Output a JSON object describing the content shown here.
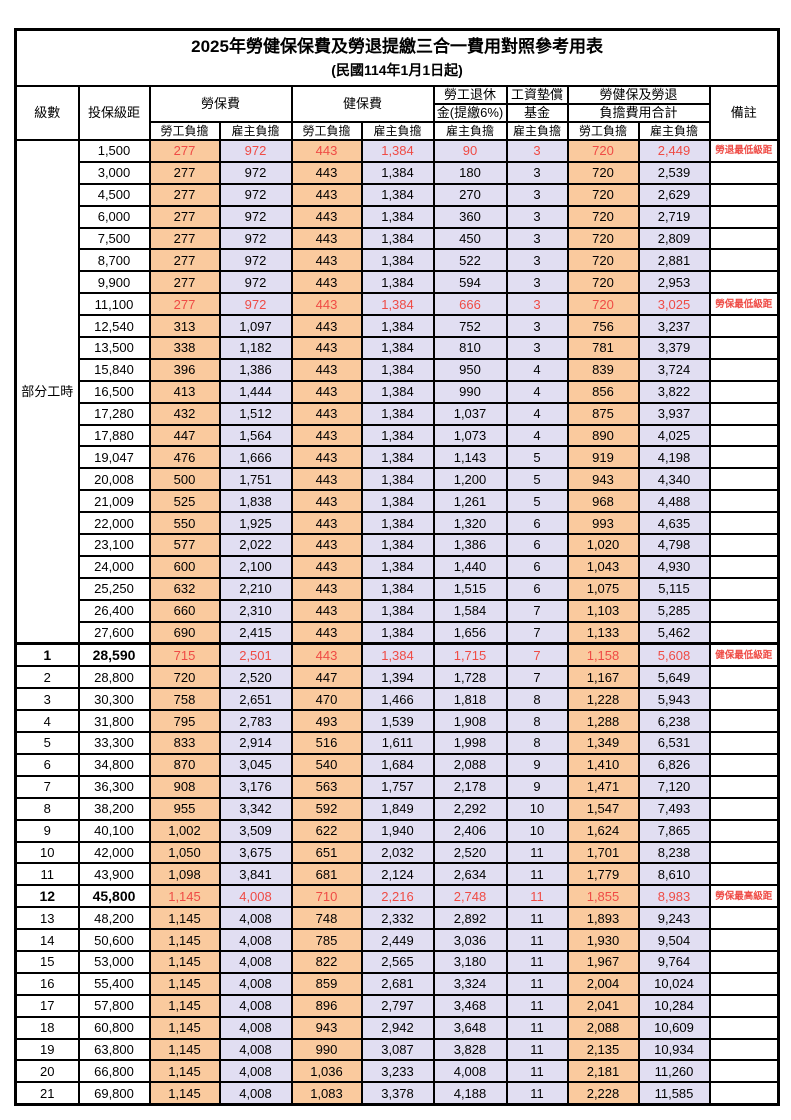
{
  "title": "2025年勞健保保費及勞退提繳三合一費用對照參考用表",
  "subtitle": "(民國114年1月1日起)",
  "header": {
    "level": "級數",
    "bracket": "投保級距",
    "labor_ins": "勞保費",
    "health_ins": "健保費",
    "pension_line1": "勞工退休",
    "pension_line2": "金(提繳6%)",
    "wage_fund_line1": "工資墊償",
    "wage_fund_line2": "基金",
    "total_line1": "勞健保及勞退",
    "total_line2": "負擔費用合計",
    "remark": "備註",
    "employee": "勞工負擔",
    "employer": "雇主負擔"
  },
  "part_time_label": "部分工時",
  "part_time_span": 23,
  "colors": {
    "employee_bg": "#FACA9E",
    "employer_bg": "#E1DEF2",
    "highlight_red": "#EF4B45",
    "border": "#000000"
  },
  "rows": [
    {
      "level": "",
      "bracket": "1,500",
      "li_emp": "277",
      "li_er": "972",
      "hi_emp": "443",
      "hi_er": "1,384",
      "pension": "90",
      "fund": "3",
      "tot_emp": "720",
      "tot_er": "2,449",
      "remark": "勞退最低級距",
      "highlight": true,
      "bold": false
    },
    {
      "level": "",
      "bracket": "3,000",
      "li_emp": "277",
      "li_er": "972",
      "hi_emp": "443",
      "hi_er": "1,384",
      "pension": "180",
      "fund": "3",
      "tot_emp": "720",
      "tot_er": "2,539",
      "remark": "",
      "highlight": false,
      "bold": false
    },
    {
      "level": "",
      "bracket": "4,500",
      "li_emp": "277",
      "li_er": "972",
      "hi_emp": "443",
      "hi_er": "1,384",
      "pension": "270",
      "fund": "3",
      "tot_emp": "720",
      "tot_er": "2,629",
      "remark": "",
      "highlight": false,
      "bold": false
    },
    {
      "level": "",
      "bracket": "6,000",
      "li_emp": "277",
      "li_er": "972",
      "hi_emp": "443",
      "hi_er": "1,384",
      "pension": "360",
      "fund": "3",
      "tot_emp": "720",
      "tot_er": "2,719",
      "remark": "",
      "highlight": false,
      "bold": false
    },
    {
      "level": "",
      "bracket": "7,500",
      "li_emp": "277",
      "li_er": "972",
      "hi_emp": "443",
      "hi_er": "1,384",
      "pension": "450",
      "fund": "3",
      "tot_emp": "720",
      "tot_er": "2,809",
      "remark": "",
      "highlight": false,
      "bold": false
    },
    {
      "level": "",
      "bracket": "8,700",
      "li_emp": "277",
      "li_er": "972",
      "hi_emp": "443",
      "hi_er": "1,384",
      "pension": "522",
      "fund": "3",
      "tot_emp": "720",
      "tot_er": "2,881",
      "remark": "",
      "highlight": false,
      "bold": false
    },
    {
      "level": "",
      "bracket": "9,900",
      "li_emp": "277",
      "li_er": "972",
      "hi_emp": "443",
      "hi_er": "1,384",
      "pension": "594",
      "fund": "3",
      "tot_emp": "720",
      "tot_er": "2,953",
      "remark": "",
      "highlight": false,
      "bold": false
    },
    {
      "level": "",
      "bracket": "11,100",
      "li_emp": "277",
      "li_er": "972",
      "hi_emp": "443",
      "hi_er": "1,384",
      "pension": "666",
      "fund": "3",
      "tot_emp": "720",
      "tot_er": "3,025",
      "remark": "勞保最低級距",
      "highlight": true,
      "bold": false
    },
    {
      "level": "",
      "bracket": "12,540",
      "li_emp": "313",
      "li_er": "1,097",
      "hi_emp": "443",
      "hi_er": "1,384",
      "pension": "752",
      "fund": "3",
      "tot_emp": "756",
      "tot_er": "3,237",
      "remark": "",
      "highlight": false,
      "bold": false
    },
    {
      "level": "",
      "bracket": "13,500",
      "li_emp": "338",
      "li_er": "1,182",
      "hi_emp": "443",
      "hi_er": "1,384",
      "pension": "810",
      "fund": "3",
      "tot_emp": "781",
      "tot_er": "3,379",
      "remark": "",
      "highlight": false,
      "bold": false
    },
    {
      "level": "",
      "bracket": "15,840",
      "li_emp": "396",
      "li_er": "1,386",
      "hi_emp": "443",
      "hi_er": "1,384",
      "pension": "950",
      "fund": "4",
      "tot_emp": "839",
      "tot_er": "3,724",
      "remark": "",
      "highlight": false,
      "bold": false
    },
    {
      "level": "",
      "bracket": "16,500",
      "li_emp": "413",
      "li_er": "1,444",
      "hi_emp": "443",
      "hi_er": "1,384",
      "pension": "990",
      "fund": "4",
      "tot_emp": "856",
      "tot_er": "3,822",
      "remark": "",
      "highlight": false,
      "bold": false
    },
    {
      "level": "",
      "bracket": "17,280",
      "li_emp": "432",
      "li_er": "1,512",
      "hi_emp": "443",
      "hi_er": "1,384",
      "pension": "1,037",
      "fund": "4",
      "tot_emp": "875",
      "tot_er": "3,937",
      "remark": "",
      "highlight": false,
      "bold": false
    },
    {
      "level": "",
      "bracket": "17,880",
      "li_emp": "447",
      "li_er": "1,564",
      "hi_emp": "443",
      "hi_er": "1,384",
      "pension": "1,073",
      "fund": "4",
      "tot_emp": "890",
      "tot_er": "4,025",
      "remark": "",
      "highlight": false,
      "bold": false
    },
    {
      "level": "",
      "bracket": "19,047",
      "li_emp": "476",
      "li_er": "1,666",
      "hi_emp": "443",
      "hi_er": "1,384",
      "pension": "1,143",
      "fund": "5",
      "tot_emp": "919",
      "tot_er": "4,198",
      "remark": "",
      "highlight": false,
      "bold": false
    },
    {
      "level": "",
      "bracket": "20,008",
      "li_emp": "500",
      "li_er": "1,751",
      "hi_emp": "443",
      "hi_er": "1,384",
      "pension": "1,200",
      "fund": "5",
      "tot_emp": "943",
      "tot_er": "4,340",
      "remark": "",
      "highlight": false,
      "bold": false
    },
    {
      "level": "",
      "bracket": "21,009",
      "li_emp": "525",
      "li_er": "1,838",
      "hi_emp": "443",
      "hi_er": "1,384",
      "pension": "1,261",
      "fund": "5",
      "tot_emp": "968",
      "tot_er": "4,488",
      "remark": "",
      "highlight": false,
      "bold": false
    },
    {
      "level": "",
      "bracket": "22,000",
      "li_emp": "550",
      "li_er": "1,925",
      "hi_emp": "443",
      "hi_er": "1,384",
      "pension": "1,320",
      "fund": "6",
      "tot_emp": "993",
      "tot_er": "4,635",
      "remark": "",
      "highlight": false,
      "bold": false
    },
    {
      "level": "",
      "bracket": "23,100",
      "li_emp": "577",
      "li_er": "2,022",
      "hi_emp": "443",
      "hi_er": "1,384",
      "pension": "1,386",
      "fund": "6",
      "tot_emp": "1,020",
      "tot_er": "4,798",
      "remark": "",
      "highlight": false,
      "bold": false
    },
    {
      "level": "",
      "bracket": "24,000",
      "li_emp": "600",
      "li_er": "2,100",
      "hi_emp": "443",
      "hi_er": "1,384",
      "pension": "1,440",
      "fund": "6",
      "tot_emp": "1,043",
      "tot_er": "4,930",
      "remark": "",
      "highlight": false,
      "bold": false
    },
    {
      "level": "",
      "bracket": "25,250",
      "li_emp": "632",
      "li_er": "2,210",
      "hi_emp": "443",
      "hi_er": "1,384",
      "pension": "1,515",
      "fund": "6",
      "tot_emp": "1,075",
      "tot_er": "5,115",
      "remark": "",
      "highlight": false,
      "bold": false
    },
    {
      "level": "",
      "bracket": "26,400",
      "li_emp": "660",
      "li_er": "2,310",
      "hi_emp": "443",
      "hi_er": "1,384",
      "pension": "1,584",
      "fund": "7",
      "tot_emp": "1,103",
      "tot_er": "5,285",
      "remark": "",
      "highlight": false,
      "bold": false
    },
    {
      "level": "",
      "bracket": "27,600",
      "li_emp": "690",
      "li_er": "2,415",
      "hi_emp": "443",
      "hi_er": "1,384",
      "pension": "1,656",
      "fund": "7",
      "tot_emp": "1,133",
      "tot_er": "5,462",
      "remark": "",
      "highlight": false,
      "bold": false
    },
    {
      "level": "1",
      "bracket": "28,590",
      "li_emp": "715",
      "li_er": "2,501",
      "hi_emp": "443",
      "hi_er": "1,384",
      "pension": "1,715",
      "fund": "7",
      "tot_emp": "1,158",
      "tot_er": "5,608",
      "remark": "健保最低級距",
      "highlight": true,
      "bold": true
    },
    {
      "level": "2",
      "bracket": "28,800",
      "li_emp": "720",
      "li_er": "2,520",
      "hi_emp": "447",
      "hi_er": "1,394",
      "pension": "1,728",
      "fund": "7",
      "tot_emp": "1,167",
      "tot_er": "5,649",
      "remark": "",
      "highlight": false,
      "bold": false
    },
    {
      "level": "3",
      "bracket": "30,300",
      "li_emp": "758",
      "li_er": "2,651",
      "hi_emp": "470",
      "hi_er": "1,466",
      "pension": "1,818",
      "fund": "8",
      "tot_emp": "1,228",
      "tot_er": "5,943",
      "remark": "",
      "highlight": false,
      "bold": false
    },
    {
      "level": "4",
      "bracket": "31,800",
      "li_emp": "795",
      "li_er": "2,783",
      "hi_emp": "493",
      "hi_er": "1,539",
      "pension": "1,908",
      "fund": "8",
      "tot_emp": "1,288",
      "tot_er": "6,238",
      "remark": "",
      "highlight": false,
      "bold": false
    },
    {
      "level": "5",
      "bracket": "33,300",
      "li_emp": "833",
      "li_er": "2,914",
      "hi_emp": "516",
      "hi_er": "1,611",
      "pension": "1,998",
      "fund": "8",
      "tot_emp": "1,349",
      "tot_er": "6,531",
      "remark": "",
      "highlight": false,
      "bold": false
    },
    {
      "level": "6",
      "bracket": "34,800",
      "li_emp": "870",
      "li_er": "3,045",
      "hi_emp": "540",
      "hi_er": "1,684",
      "pension": "2,088",
      "fund": "9",
      "tot_emp": "1,410",
      "tot_er": "6,826",
      "remark": "",
      "highlight": false,
      "bold": false
    },
    {
      "level": "7",
      "bracket": "36,300",
      "li_emp": "908",
      "li_er": "3,176",
      "hi_emp": "563",
      "hi_er": "1,757",
      "pension": "2,178",
      "fund": "9",
      "tot_emp": "1,471",
      "tot_er": "7,120",
      "remark": "",
      "highlight": false,
      "bold": false
    },
    {
      "level": "8",
      "bracket": "38,200",
      "li_emp": "955",
      "li_er": "3,342",
      "hi_emp": "592",
      "hi_er": "1,849",
      "pension": "2,292",
      "fund": "10",
      "tot_emp": "1,547",
      "tot_er": "7,493",
      "remark": "",
      "highlight": false,
      "bold": false
    },
    {
      "level": "9",
      "bracket": "40,100",
      "li_emp": "1,002",
      "li_er": "3,509",
      "hi_emp": "622",
      "hi_er": "1,940",
      "pension": "2,406",
      "fund": "10",
      "tot_emp": "1,624",
      "tot_er": "7,865",
      "remark": "",
      "highlight": false,
      "bold": false
    },
    {
      "level": "10",
      "bracket": "42,000",
      "li_emp": "1,050",
      "li_er": "3,675",
      "hi_emp": "651",
      "hi_er": "2,032",
      "pension": "2,520",
      "fund": "11",
      "tot_emp": "1,701",
      "tot_er": "8,238",
      "remark": "",
      "highlight": false,
      "bold": false
    },
    {
      "level": "11",
      "bracket": "43,900",
      "li_emp": "1,098",
      "li_er": "3,841",
      "hi_emp": "681",
      "hi_er": "2,124",
      "pension": "2,634",
      "fund": "11",
      "tot_emp": "1,779",
      "tot_er": "8,610",
      "remark": "",
      "highlight": false,
      "bold": false
    },
    {
      "level": "12",
      "bracket": "45,800",
      "li_emp": "1,145",
      "li_er": "4,008",
      "hi_emp": "710",
      "hi_er": "2,216",
      "pension": "2,748",
      "fund": "11",
      "tot_emp": "1,855",
      "tot_er": "8,983",
      "remark": "勞保最高級距",
      "highlight": true,
      "bold": true
    },
    {
      "level": "13",
      "bracket": "48,200",
      "li_emp": "1,145",
      "li_er": "4,008",
      "hi_emp": "748",
      "hi_er": "2,332",
      "pension": "2,892",
      "fund": "11",
      "tot_emp": "1,893",
      "tot_er": "9,243",
      "remark": "",
      "highlight": false,
      "bold": false
    },
    {
      "level": "14",
      "bracket": "50,600",
      "li_emp": "1,145",
      "li_er": "4,008",
      "hi_emp": "785",
      "hi_er": "2,449",
      "pension": "3,036",
      "fund": "11",
      "tot_emp": "1,930",
      "tot_er": "9,504",
      "remark": "",
      "highlight": false,
      "bold": false
    },
    {
      "level": "15",
      "bracket": "53,000",
      "li_emp": "1,145",
      "li_er": "4,008",
      "hi_emp": "822",
      "hi_er": "2,565",
      "pension": "3,180",
      "fund": "11",
      "tot_emp": "1,967",
      "tot_er": "9,764",
      "remark": "",
      "highlight": false,
      "bold": false
    },
    {
      "level": "16",
      "bracket": "55,400",
      "li_emp": "1,145",
      "li_er": "4,008",
      "hi_emp": "859",
      "hi_er": "2,681",
      "pension": "3,324",
      "fund": "11",
      "tot_emp": "2,004",
      "tot_er": "10,024",
      "remark": "",
      "highlight": false,
      "bold": false
    },
    {
      "level": "17",
      "bracket": "57,800",
      "li_emp": "1,145",
      "li_er": "4,008",
      "hi_emp": "896",
      "hi_er": "2,797",
      "pension": "3,468",
      "fund": "11",
      "tot_emp": "2,041",
      "tot_er": "10,284",
      "remark": "",
      "highlight": false,
      "bold": false
    },
    {
      "level": "18",
      "bracket": "60,800",
      "li_emp": "1,145",
      "li_er": "4,008",
      "hi_emp": "943",
      "hi_er": "2,942",
      "pension": "3,648",
      "fund": "11",
      "tot_emp": "2,088",
      "tot_er": "10,609",
      "remark": "",
      "highlight": false,
      "bold": false
    },
    {
      "level": "19",
      "bracket": "63,800",
      "li_emp": "1,145",
      "li_er": "4,008",
      "hi_emp": "990",
      "hi_er": "3,087",
      "pension": "3,828",
      "fund": "11",
      "tot_emp": "2,135",
      "tot_er": "10,934",
      "remark": "",
      "highlight": false,
      "bold": false
    },
    {
      "level": "20",
      "bracket": "66,800",
      "li_emp": "1,145",
      "li_er": "4,008",
      "hi_emp": "1,036",
      "hi_er": "3,233",
      "pension": "4,008",
      "fund": "11",
      "tot_emp": "2,181",
      "tot_er": "11,260",
      "remark": "",
      "highlight": false,
      "bold": false
    },
    {
      "level": "21",
      "bracket": "69,800",
      "li_emp": "1,145",
      "li_er": "4,008",
      "hi_emp": "1,083",
      "hi_er": "3,378",
      "pension": "4,188",
      "fund": "11",
      "tot_emp": "2,228",
      "tot_er": "11,585",
      "remark": "",
      "highlight": false,
      "bold": false
    }
  ]
}
